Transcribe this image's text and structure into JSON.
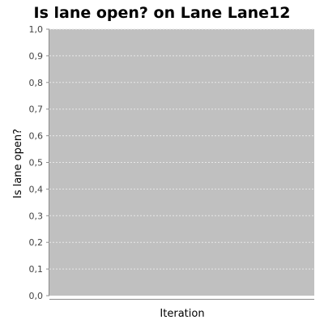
{
  "chart_data": {
    "type": "line",
    "title": "Is lane open? on Lane Lane12",
    "xlabel": "Iteration",
    "ylabel": "Is lane open?",
    "ylim": [
      0.0,
      1.0
    ],
    "y_ticks": [
      "0,0",
      "0,1",
      "0,2",
      "0,3",
      "0,4",
      "0,5",
      "0,6",
      "0,7",
      "0,8",
      "0,9",
      "1,0"
    ],
    "grid": true,
    "series": []
  },
  "colors": {
    "plot_background": "#c0c0c0",
    "gridline": "#e8e8e8",
    "axis": "#8c8c8c"
  }
}
